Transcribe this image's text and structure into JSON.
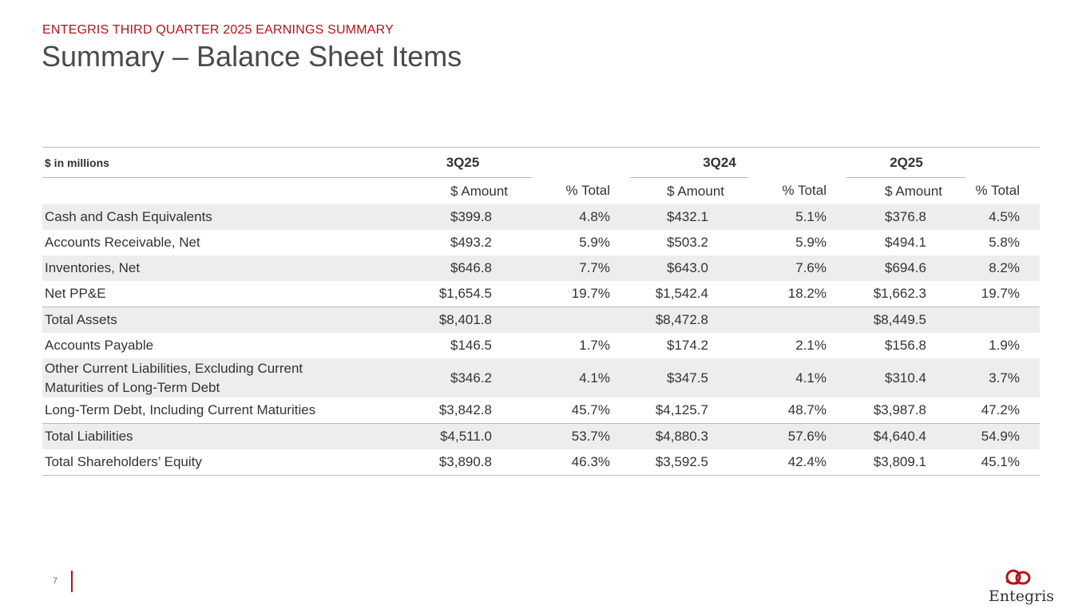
{
  "header": {
    "kicker": "ENTEGRIS THIRD QUARTER 2025 EARNINGS SUMMARY",
    "title": "Summary – Balance Sheet Items"
  },
  "table": {
    "unit_label": "$ in millions",
    "periods": [
      "3Q25",
      "3Q24",
      "2Q25"
    ],
    "subheaders": [
      "$ Amount",
      "% Total",
      "$ Amount",
      "% Total",
      "$ Amount",
      "% Total"
    ],
    "rows": [
      {
        "label": "Cash and Cash Equivalents",
        "values": [
          "$399.8",
          "4.8%",
          "$432.1",
          "5.1%",
          "$376.8",
          "4.5%"
        ]
      },
      {
        "label": "Accounts Receivable, Net",
        "values": [
          "$493.2",
          "5.9%",
          "$503.2",
          "5.9%",
          "$494.1",
          "5.8%"
        ]
      },
      {
        "label": "Inventories, Net",
        "values": [
          "$646.8",
          "7.7%",
          "$643.0",
          "7.6%",
          "$694.6",
          "8.2%"
        ]
      },
      {
        "label": "Net PP&E",
        "values": [
          "$1,654.5",
          "19.7%",
          "$1,542.4",
          "18.2%",
          "$1,662.3",
          "19.7%"
        ]
      },
      {
        "label": "Total Assets",
        "values": [
          "$8,401.8",
          "",
          "$8,472.8",
          "",
          "$8,449.5",
          ""
        ]
      },
      {
        "label": "Accounts Payable",
        "values": [
          "$146.5",
          "1.7%",
          "$174.2",
          "2.1%",
          "$156.8",
          "1.9%"
        ]
      },
      {
        "label": "Other Current Liabilities, Excluding Current Maturities of Long-Term Debt",
        "values": [
          "$346.2",
          "4.1%",
          "$347.5",
          "4.1%",
          "$310.4",
          "3.7%"
        ]
      },
      {
        "label": "Long-Term Debt, Including Current Maturities",
        "values": [
          "$3,842.8",
          "45.7%",
          "$4,125.7",
          "48.7%",
          "$3,987.8",
          "47.2%"
        ]
      },
      {
        "label": "Total Liabilities",
        "values": [
          "$4,511.0",
          "53.7%",
          "$4,880.3",
          "57.6%",
          "$4,640.4",
          "54.9%"
        ]
      },
      {
        "label": "Total Shareholders’ Equity",
        "values": [
          "$3,890.8",
          "46.3%",
          "$3,592.5",
          "42.4%",
          "$3,809.1",
          "45.1%"
        ]
      }
    ]
  },
  "footer": {
    "page_number": "7",
    "logo_text": "Entegris",
    "accent_color": "#b5121b"
  }
}
